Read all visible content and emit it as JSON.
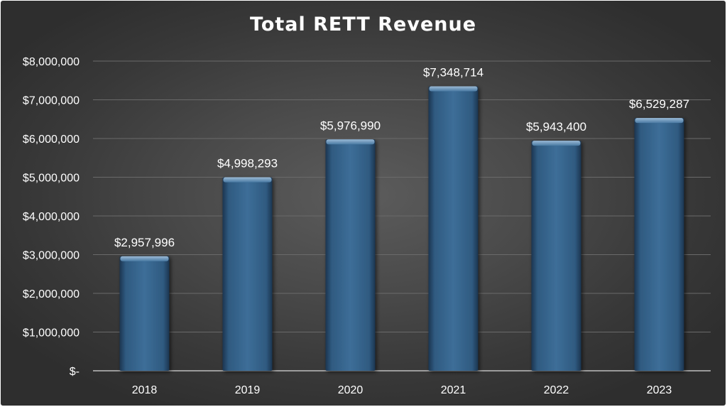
{
  "chart_data": {
    "type": "bar",
    "title": "Total RETT Revenue",
    "categories": [
      "2018",
      "2019",
      "2020",
      "2021",
      "2022",
      "2023"
    ],
    "values": [
      2957996,
      4998293,
      5976990,
      7348714,
      5943400,
      6529287
    ],
    "data_labels": [
      "$2,957,996",
      "$4,998,293",
      "$5,976,990",
      "$7,348,714",
      "$5,943,400",
      "$6,529,287"
    ],
    "y_ticks": [
      0,
      1000000,
      2000000,
      3000000,
      4000000,
      5000000,
      6000000,
      7000000,
      8000000
    ],
    "y_tick_labels": [
      "$-",
      "$1,000,000",
      "$2,000,000",
      "$3,000,000",
      "$4,000,000",
      "$5,000,000",
      "$6,000,000",
      "$7,000,000",
      "$8,000,000"
    ],
    "ylim": [
      0,
      8000000
    ],
    "xlabel": "",
    "ylabel": "",
    "grid": true,
    "legend": "none",
    "colors": {
      "bar": "#3a6a92",
      "background": "#474747",
      "grid": "#6a6a6a",
      "text": "#ffffff"
    }
  }
}
